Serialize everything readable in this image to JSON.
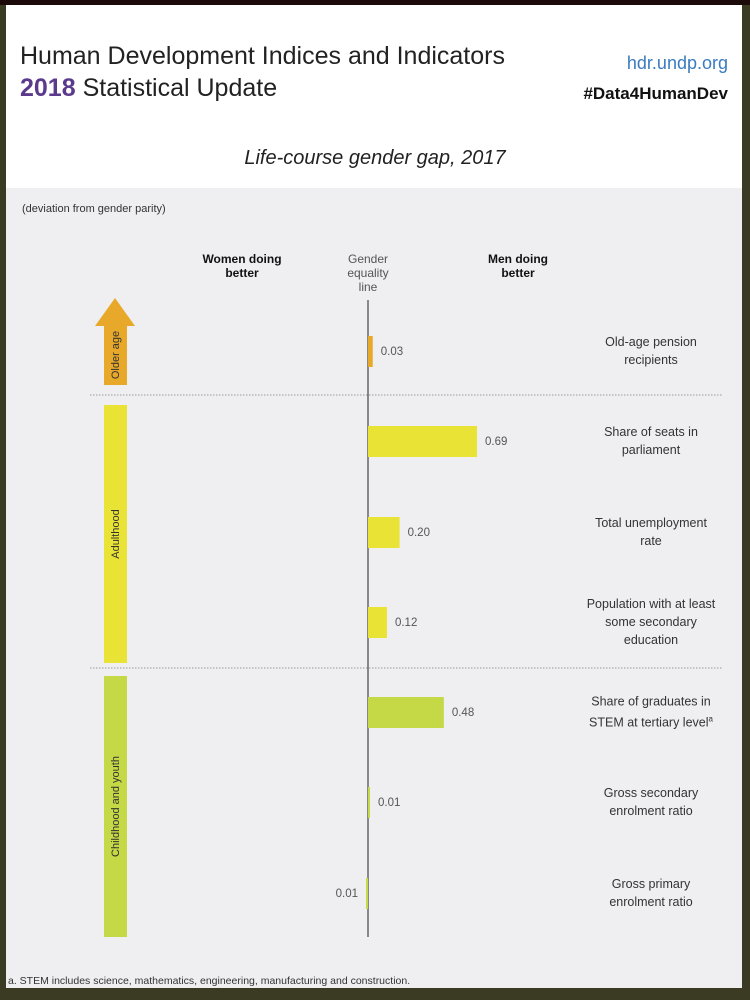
{
  "header": {
    "title_line1": "Human Development Indices and Indicators",
    "title_year": "2018",
    "title_line2_rest": " Statistical Update",
    "url": "hdr.undp.org",
    "hashtag": "#Data4HumanDev"
  },
  "chart_data": {
    "type": "bar",
    "orientation": "horizontal",
    "title": "Life-course gender gap, 2017",
    "subtitle": "(deviation from gender parity)",
    "left_label": "Women doing better",
    "center_label": "Gender equality line",
    "right_label": "Men doing better",
    "groups": [
      {
        "name": "Older age",
        "color": "#e8a92a",
        "arrow": true
      },
      {
        "name": "Adulthood",
        "color": "#e8e335"
      },
      {
        "name": "Childhood and youth",
        "color": "#c5d846"
      }
    ],
    "items": [
      {
        "group": 0,
        "label": "Old-age pension recipients",
        "value": 0.03,
        "display": "0.03"
      },
      {
        "group": 1,
        "label": "Share of seats in parliament",
        "value": 0.69,
        "display": "0.69"
      },
      {
        "group": 1,
        "label": "Total unemployment rate",
        "value": 0.2,
        "display": "0.20"
      },
      {
        "group": 1,
        "label": "Population with at least some secondary education",
        "value": 0.12,
        "display": "0.12"
      },
      {
        "group": 2,
        "label": "Share of graduates in STEM at tertiary level",
        "sup": "a",
        "value": 0.48,
        "display": "0.48"
      },
      {
        "group": 2,
        "label": "Gross secondary enrolment ratio",
        "value": 0.01,
        "display": "0.01"
      },
      {
        "group": 2,
        "label": "Gross primary enrolment ratio",
        "value": -0.01,
        "display": "0.01"
      }
    ],
    "footnote": "a. STEM includes science, mathematics, engineering, manufacturing and construction."
  }
}
